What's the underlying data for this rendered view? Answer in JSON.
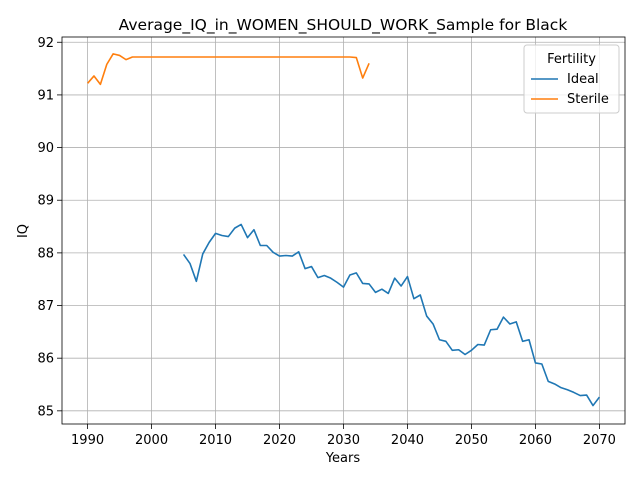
{
  "chart_data": {
    "type": "line",
    "title": "Average_IQ_in_WOMEN_SHOULD_WORK_Sample for Black",
    "xlabel": "Years",
    "ylabel": "IQ",
    "xlim": [
      1986,
      2074
    ],
    "ylim": [
      84.75,
      92.1
    ],
    "xticks": [
      1990,
      2000,
      2010,
      2020,
      2030,
      2040,
      2050,
      2060,
      2070
    ],
    "yticks": [
      85,
      86,
      87,
      88,
      89,
      90,
      91,
      92
    ],
    "grid": true,
    "legend": {
      "title": "Fertility",
      "placement": "top-right"
    },
    "series": [
      {
        "name": "Ideal",
        "color": "#1f77b4",
        "x": [
          2005,
          2006,
          2007,
          2008,
          2009,
          2010,
          2011,
          2012,
          2013,
          2014,
          2015,
          2016,
          2017,
          2018,
          2019,
          2020,
          2021,
          2022,
          2023,
          2024,
          2025,
          2026,
          2027,
          2028,
          2029,
          2030,
          2031,
          2032,
          2033,
          2034,
          2035,
          2036,
          2037,
          2038,
          2039,
          2040,
          2041,
          2042,
          2043,
          2044,
          2045,
          2046,
          2047,
          2048,
          2049,
          2050,
          2051,
          2052,
          2053,
          2054,
          2055,
          2056,
          2057,
          2058,
          2059,
          2060,
          2061,
          2062,
          2063,
          2064,
          2065,
          2066,
          2067,
          2068,
          2069,
          2070
        ],
        "y": [
          87.97,
          87.8,
          87.46,
          87.98,
          88.2,
          88.37,
          88.33,
          88.31,
          88.47,
          88.54,
          88.29,
          88.44,
          88.14,
          88.14,
          88.01,
          87.94,
          87.95,
          87.94,
          88.02,
          87.7,
          87.74,
          87.53,
          87.57,
          87.52,
          87.44,
          87.35,
          87.58,
          87.62,
          87.42,
          87.41,
          87.25,
          87.31,
          87.23,
          87.52,
          87.37,
          87.55,
          87.13,
          87.2,
          86.8,
          86.65,
          86.35,
          86.32,
          86.15,
          86.16,
          86.07,
          86.15,
          86.26,
          86.25,
          86.54,
          86.55,
          86.78,
          86.65,
          86.69,
          86.32,
          86.35,
          85.91,
          85.89,
          85.56,
          85.51,
          85.44,
          85.4,
          85.35,
          85.29,
          85.3,
          85.1,
          85.26
        ]
      },
      {
        "name": "Sterile",
        "color": "#ff7f0e",
        "x": [
          1990,
          1991,
          1992,
          1993,
          1994,
          1995,
          1996,
          1997,
          1998,
          1999,
          2000,
          2001,
          2002,
          2003,
          2004,
          2005,
          2006,
          2007,
          2008,
          2009,
          2010,
          2011,
          2012,
          2013,
          2014,
          2015,
          2016,
          2017,
          2018,
          2019,
          2020,
          2021,
          2022,
          2023,
          2024,
          2025,
          2026,
          2027,
          2028,
          2029,
          2030,
          2031,
          2032,
          2033,
          2034
        ],
        "y": [
          91.22,
          91.36,
          91.2,
          91.58,
          91.78,
          91.75,
          91.67,
          91.72,
          91.72,
          91.72,
          91.72,
          91.72,
          91.72,
          91.72,
          91.72,
          91.72,
          91.72,
          91.72,
          91.72,
          91.72,
          91.72,
          91.72,
          91.72,
          91.72,
          91.72,
          91.72,
          91.72,
          91.72,
          91.72,
          91.72,
          91.72,
          91.72,
          91.72,
          91.72,
          91.72,
          91.72,
          91.72,
          91.72,
          91.72,
          91.72,
          91.72,
          91.72,
          91.71,
          91.32,
          91.6
        ]
      }
    ]
  }
}
